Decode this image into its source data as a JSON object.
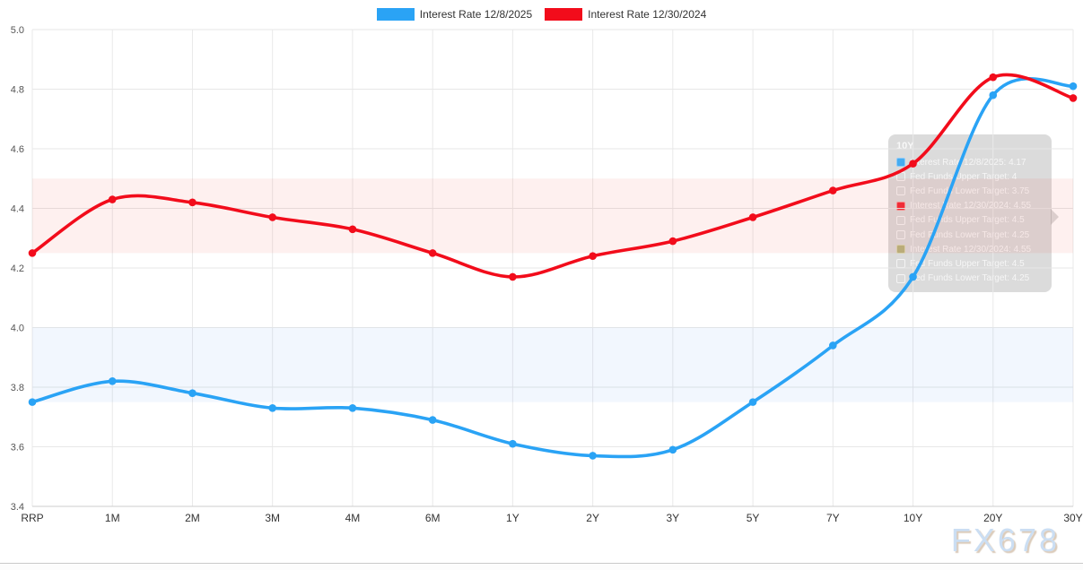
{
  "legend": {
    "items": [
      {
        "label": "Interest Rate 12/8/2025",
        "color": "#2aa3f5"
      },
      {
        "label": "Interest Rate 12/30/2024",
        "color": "#f20c1b"
      }
    ]
  },
  "tooltip": {
    "title": "10Y",
    "rows": [
      {
        "swatch": "filled-blue",
        "text": "Interest Rate 12/8/2025: 4.17"
      },
      {
        "swatch": "outline",
        "text": "Fed Funds Upper Target: 4"
      },
      {
        "swatch": "outline",
        "text": "Fed Funds Lower Target: 3.75"
      },
      {
        "swatch": "filled-red",
        "text": "Interest Rate 12/30/2024: 4.55"
      },
      {
        "swatch": "outline",
        "text": "Fed Funds Upper Target: 4.5"
      },
      {
        "swatch": "outline",
        "text": "Fed Funds Lower Target: 4.25"
      },
      {
        "swatch": "filled-olive",
        "text": "Interest Rate 12/30/2024: 4.55"
      },
      {
        "swatch": "outline",
        "text": "Fed Funds Upper Target: 4.5"
      },
      {
        "swatch": "outline",
        "text": "Fed Funds Lower Target: 4.25"
      }
    ]
  },
  "watermark": {
    "text": "FX678"
  },
  "chart_data": {
    "type": "line",
    "title": "",
    "xlabel": "",
    "ylabel": "",
    "categories": [
      "RRP",
      "1M",
      "2M",
      "3M",
      "4M",
      "6M",
      "1Y",
      "2Y",
      "3Y",
      "5Y",
      "7Y",
      "10Y",
      "20Y",
      "30Y"
    ],
    "series": [
      {
        "name": "Interest Rate 12/8/2025",
        "color": "#2aa3f5",
        "values": [
          3.75,
          3.82,
          3.78,
          3.73,
          3.73,
          3.69,
          3.61,
          3.57,
          3.59,
          3.75,
          3.94,
          4.17,
          4.78,
          4.81
        ]
      },
      {
        "name": "Interest Rate 12/30/2024",
        "color": "#f20c1b",
        "values": [
          4.25,
          4.43,
          4.42,
          4.37,
          4.33,
          4.25,
          4.17,
          4.24,
          4.29,
          4.37,
          4.46,
          4.55,
          4.84,
          4.77
        ]
      }
    ],
    "bands": [
      {
        "upper": 4.5,
        "lower": 4.25,
        "color": "rgba(242,70,50,0.08)"
      },
      {
        "upper": 4.0,
        "lower": 3.75,
        "color": "rgba(70,140,245,0.07)"
      }
    ],
    "ylim": [
      3.4,
      5.0
    ],
    "ytick_step": 0.2,
    "grid": true,
    "legend_position": "top-center"
  }
}
